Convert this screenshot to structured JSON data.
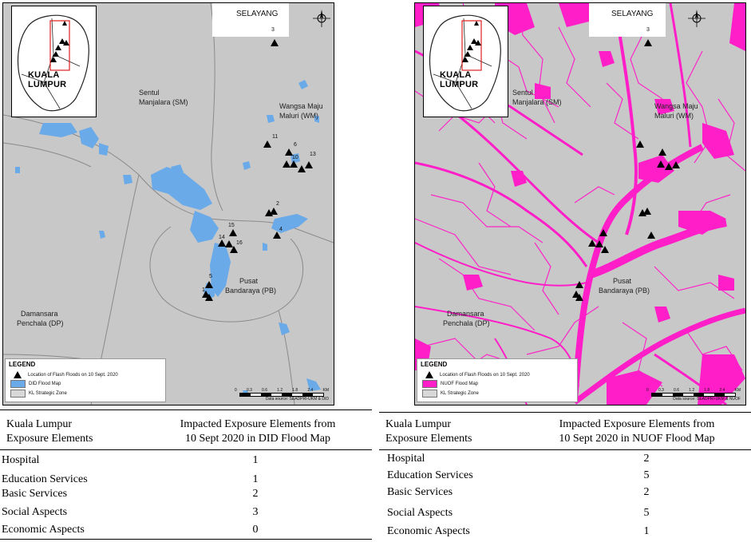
{
  "panels": [
    {
      "id": "did",
      "map": {
        "inset_title": "KUALA LUMPUR",
        "selayang_label": "SELAYANG",
        "area_labels": [
          {
            "text": "Sentul"
          },
          {
            "text": "Manjalara (SM)"
          },
          {
            "text": "Wangsa Maju"
          },
          {
            "text": "Maluri (WM)"
          },
          {
            "text": "Pusat"
          },
          {
            "text": "Bandaraya (PB)"
          },
          {
            "text": "Damansara"
          },
          {
            "text": "Penchala (DP)"
          }
        ],
        "point_labels": [
          "3",
          "11",
          "6",
          "10",
          "13",
          "2",
          "4",
          "15",
          "14",
          "16",
          "5",
          "1"
        ],
        "legend": {
          "title": "LEGEND",
          "items": [
            {
              "label": "Location of Flash Floods on 10 Sept. 2020",
              "kind": "triangle",
              "color": "#000000"
            },
            {
              "label": "DID Flood Map",
              "kind": "swatch",
              "color": "#6aaae8"
            },
            {
              "label": "KL Strategic Zone",
              "kind": "swatch",
              "color": "#d8d8d8"
            }
          ]
        },
        "scale": {
          "ticks": [
            "0",
            "0.3",
            "0.6",
            "1.2",
            "1.8",
            "2.4"
          ],
          "unit": "KM",
          "source": "Data source: SEADPRI-UKM & DID"
        },
        "flood_color": "#6aaae8"
      },
      "table": {
        "header_left": [
          "Kuala Lumpur",
          "Exposure Elements"
        ],
        "header_right": [
          "Impacted Exposure Elements from",
          "10 Sept 2020 in DID Flood Map"
        ],
        "rows": [
          {
            "element": "Hospital",
            "value": "1"
          },
          {
            "element": "Education Services",
            "value": "1"
          },
          {
            "element": "Basic Services",
            "value": "2"
          },
          {
            "element": "Social Aspects",
            "value": "3"
          },
          {
            "element": "Economic Aspects",
            "value": "0"
          }
        ]
      }
    },
    {
      "id": "nuof",
      "map": {
        "inset_title": "KUALA LUMPUR",
        "selayang_label": "SELAYANG",
        "area_labels": [
          {
            "text": "Sentul"
          },
          {
            "text": "Manjalara (SM)"
          },
          {
            "text": "Wangsa Maju"
          },
          {
            "text": "Maluri (WM)"
          },
          {
            "text": "Pusat"
          },
          {
            "text": "Bandaraya (PB)"
          },
          {
            "text": "Damansara"
          },
          {
            "text": "Penchala (DP)"
          }
        ],
        "point_labels": [
          "3"
        ],
        "legend": {
          "title": "LEGEND",
          "items": [
            {
              "label": "Location of Flash Floods on 10 Sept. 2020",
              "kind": "triangle",
              "color": "#000000"
            },
            {
              "label": "NUOF Flood Map",
              "kind": "swatch",
              "color": "#ff1ec8"
            },
            {
              "label": "KL Strategic Zone",
              "kind": "swatch",
              "color": "#d8d8d8"
            }
          ]
        },
        "scale": {
          "ticks": [
            "0",
            "0.3",
            "0.6",
            "1.2",
            "1.8",
            "2.4"
          ],
          "unit": "KM",
          "source": "Data source: SEADPRI-UKM & NUOF"
        },
        "flood_color": "#ff1ec8"
      },
      "table": {
        "header_left": [
          "Kuala Lumpur",
          "Exposure Elements"
        ],
        "header_right": [
          "Impacted Exposure Elements from",
          "10 Sept 2020 in NUOF Flood Map"
        ],
        "rows": [
          {
            "element": "Hospital",
            "value": "2"
          },
          {
            "element": "Education Services",
            "value": "5"
          },
          {
            "element": "Basic Services",
            "value": "2"
          },
          {
            "element": "Social Aspects",
            "value": "5"
          },
          {
            "element": "Economic Aspects",
            "value": "1"
          }
        ]
      }
    }
  ]
}
